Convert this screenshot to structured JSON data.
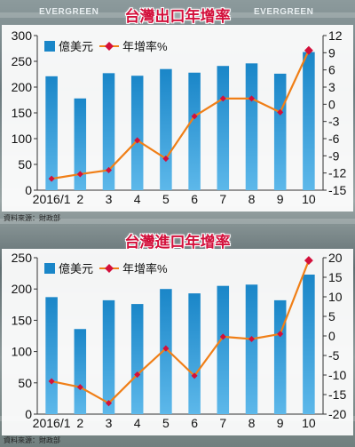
{
  "background": {
    "banner_texts": [
      "EVERGREEN",
      "EVERGREEN"
    ]
  },
  "source_label": "資料來源：財政部",
  "colors": {
    "bar": "#1a86c8",
    "bar_light": "#5db8ea",
    "line": "#f07f17",
    "marker": "#d3103b",
    "title": "#d3103b"
  },
  "chart_data": [
    {
      "type": "bar+line",
      "title": "台灣出口年增率",
      "categories": [
        "2016/1",
        "2",
        "3",
        "4",
        "5",
        "6",
        "7",
        "8",
        "9",
        "10"
      ],
      "series": [
        {
          "name": "億美元",
          "type": "bar",
          "axis": "left",
          "values": [
            221,
            178,
            227,
            222,
            235,
            228,
            241,
            246,
            226,
            268
          ]
        },
        {
          "name": "年增率%",
          "type": "line",
          "axis": "right",
          "values": [
            -13,
            -12.2,
            -11.5,
            -6.3,
            -9.5,
            -2.1,
            1,
            1,
            -1.4,
            9.4
          ]
        }
      ],
      "ylim_left": [
        0,
        300
      ],
      "yticks_left": [
        0,
        50,
        100,
        150,
        200,
        250,
        300
      ],
      "ylim_right": [
        -15,
        12
      ],
      "yticks_right": [
        -15,
        -12,
        -9,
        -6,
        -3,
        0,
        3,
        6,
        9,
        12
      ],
      "grid": false,
      "legend": "top-left",
      "source": "資料來源：財政部"
    },
    {
      "type": "bar+line",
      "title": "台灣進口年增率",
      "categories": [
        "2016/1",
        "2",
        "3",
        "4",
        "5",
        "6",
        "7",
        "8",
        "9",
        "10"
      ],
      "series": [
        {
          "name": "億美元",
          "type": "bar",
          "axis": "left",
          "values": [
            187,
            136,
            182,
            176,
            200,
            193,
            205,
            207,
            182,
            223
          ]
        },
        {
          "name": "年增率%",
          "type": "line",
          "axis": "right",
          "values": [
            -11.6,
            -13.1,
            -17.2,
            -9.9,
            -3.2,
            -10.2,
            -0.2,
            -0.8,
            0.5,
            19.3
          ]
        }
      ],
      "ylim_left": [
        0,
        250
      ],
      "yticks_left": [
        0,
        50,
        100,
        150,
        200,
        250
      ],
      "ylim_right": [
        -20,
        20
      ],
      "yticks_right": [
        -20,
        -15,
        -10,
        -5,
        0,
        5,
        10,
        15,
        20
      ],
      "grid": false,
      "legend": "top-left",
      "source": "資料來源：財政部"
    }
  ]
}
